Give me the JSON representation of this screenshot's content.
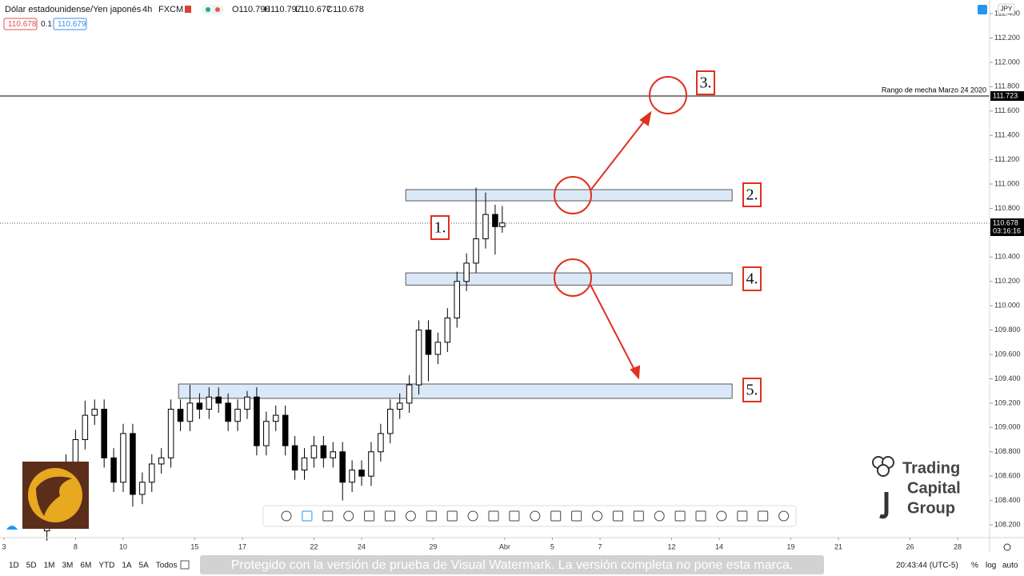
{
  "header": {
    "symbol": "Dólar estadounidense/Yen japonés",
    "interval": "4h",
    "source": "FXCM",
    "ohlc": [
      "O110.790",
      "H110.797",
      "L110.677",
      "C110.678"
    ],
    "sell": "110.678",
    "spread": "0.1",
    "buy": "110.679"
  },
  "currency": "JPY",
  "chart_data": {
    "type": "candlestick",
    "x": [
      1.8,
      2.2,
      2.6,
      3.0,
      3.4,
      3.8,
      4.2,
      4.6,
      5.0,
      5.4,
      5.8,
      6.2,
      6.6,
      7.0,
      7.4,
      7.8,
      8.2,
      8.6,
      9.0,
      9.4,
      9.8,
      10.2,
      10.6,
      11.0,
      11.4,
      11.8,
      12.2,
      12.6,
      13.0,
      13.4,
      13.8,
      14.2,
      14.6,
      15.0,
      15.4,
      15.8,
      16.2,
      16.6,
      17.0,
      17.4,
      17.8,
      18.2,
      18.6,
      19.0,
      19.4,
      19.8,
      20.2,
      20.6,
      20.9
    ],
    "open": [
      108.15,
      108.25,
      108.35,
      108.7,
      108.9,
      109.1,
      109.15,
      108.75,
      108.55,
      108.95,
      108.45,
      108.55,
      108.7,
      108.75,
      109.15,
      109.05,
      109.2,
      109.15,
      109.25,
      109.2,
      109.05,
      109.15,
      109.25,
      108.85,
      109.05,
      109.1,
      108.85,
      108.65,
      108.75,
      108.85,
      108.75,
      108.8,
      108.55,
      108.65,
      108.6,
      108.8,
      108.95,
      109.15,
      109.2,
      109.35,
      109.8,
      109.6,
      109.7,
      109.9,
      110.2,
      110.35,
      110.55,
      110.75,
      110.65
    ],
    "high": [
      108.33,
      108.43,
      108.78,
      108.98,
      109.22,
      109.23,
      109.23,
      108.83,
      109.03,
      109.03,
      108.63,
      108.78,
      108.83,
      109.23,
      109.23,
      109.35,
      109.28,
      109.33,
      109.33,
      109.28,
      109.23,
      109.3,
      109.33,
      109.13,
      109.18,
      109.18,
      108.93,
      108.83,
      108.93,
      108.93,
      108.88,
      108.88,
      108.73,
      108.73,
      108.88,
      109.03,
      109.23,
      109.28,
      109.43,
      109.88,
      109.88,
      109.78,
      109.98,
      110.28,
      110.43,
      110.97,
      110.93,
      110.83,
      110.82
    ],
    "low": [
      108.07,
      108.17,
      108.27,
      108.62,
      108.82,
      109.02,
      108.67,
      108.47,
      108.47,
      108.35,
      108.37,
      108.47,
      108.62,
      108.67,
      108.97,
      108.97,
      109.07,
      109.07,
      109.12,
      108.97,
      108.97,
      109.07,
      108.77,
      108.77,
      108.97,
      108.77,
      108.57,
      108.57,
      108.67,
      108.67,
      108.67,
      108.4,
      108.47,
      108.52,
      108.52,
      108.72,
      108.87,
      109.07,
      109.12,
      109.27,
      109.38,
      109.52,
      109.62,
      109.82,
      110.12,
      110.27,
      110.47,
      110.42,
      110.6
    ],
    "close": [
      108.25,
      108.35,
      108.7,
      108.9,
      109.1,
      109.15,
      108.75,
      108.55,
      108.95,
      108.45,
      108.55,
      108.7,
      108.75,
      109.15,
      109.05,
      109.2,
      109.15,
      109.25,
      109.2,
      109.05,
      109.15,
      109.25,
      108.85,
      109.05,
      109.1,
      108.85,
      108.65,
      108.75,
      108.85,
      108.75,
      108.8,
      108.55,
      108.65,
      108.6,
      108.8,
      108.95,
      109.15,
      109.2,
      109.35,
      109.8,
      109.6,
      109.7,
      109.9,
      110.2,
      110.35,
      110.55,
      110.75,
      110.65,
      110.68
    ],
    "up_color": "#ffffff",
    "down_color": "#000000",
    "xlim": [
      -0.168,
      41.34
    ],
    "ylim": [
      108.095,
      112.512
    ],
    "xticks": [
      {
        "value": 0,
        "label": "3"
      },
      {
        "value": 3,
        "label": "8"
      },
      {
        "value": 5,
        "label": "10"
      },
      {
        "value": 8,
        "label": "15"
      },
      {
        "value": 10,
        "label": "17"
      },
      {
        "value": 13,
        "label": "22"
      },
      {
        "value": 15,
        "label": "24"
      },
      {
        "value": 18,
        "label": "29"
      },
      {
        "value": 21,
        "label": "Abr"
      },
      {
        "value": 23,
        "label": "5"
      },
      {
        "value": 25,
        "label": "7"
      },
      {
        "value": 28,
        "label": "12"
      },
      {
        "value": 30,
        "label": "14"
      },
      {
        "value": 33,
        "label": "19"
      },
      {
        "value": 35,
        "label": "21"
      },
      {
        "value": 38,
        "label": "26"
      },
      {
        "value": 40,
        "label": "28"
      }
    ],
    "yticks": [
      {
        "value": 108.2,
        "label": "108.200"
      },
      {
        "value": 108.4,
        "label": "108.400"
      },
      {
        "value": 108.6,
        "label": "108.600"
      },
      {
        "value": 108.8,
        "label": "108.800"
      },
      {
        "value": 109,
        "label": "109.000"
      },
      {
        "value": 109.2,
        "label": "109.200"
      },
      {
        "value": 109.4,
        "label": "109.400"
      },
      {
        "value": 109.6,
        "label": "109.600"
      },
      {
        "value": 109.8,
        "label": "109.800"
      },
      {
        "value": 110,
        "label": "110.000"
      },
      {
        "value": 110.2,
        "label": "110.200"
      },
      {
        "value": 110.4,
        "label": "110.400"
      },
      {
        "value": 110.6,
        "label": "110.600"
      },
      {
        "value": 110.8,
        "label": "110.800"
      },
      {
        "value": 111,
        "label": "111.000"
      },
      {
        "value": 111.2,
        "label": "111.200"
      },
      {
        "value": 111.4,
        "label": "111.400"
      },
      {
        "value": 111.6,
        "label": "111.600"
      },
      {
        "value": 111.8,
        "label": "111.800"
      },
      {
        "value": 112,
        "label": "112.000"
      },
      {
        "value": 112.2,
        "label": "112.200"
      },
      {
        "value": 112.4,
        "label": "112.400"
      }
    ],
    "hline": {
      "value": 111.723,
      "text": "Rango de mecha Marzo 24 2020"
    },
    "last_price": {
      "value": 110.678,
      "countdown": "03:16:16"
    },
    "zones": [
      {
        "top": 110.954,
        "bottom": 110.862,
        "start": 16.85,
        "end": 30.54
      },
      {
        "top": 110.27,
        "bottom": 110.17,
        "start": 16.85,
        "end": 30.54
      },
      {
        "top": 109.357,
        "bottom": 109.239,
        "start": 7.32,
        "end": 30.54
      }
    ],
    "zone_color": "#dbe8f7",
    "annotations": [
      "1.",
      "2.",
      "3.",
      "4.",
      "5."
    ]
  },
  "ranges": [
    "1D",
    "5D",
    "1M",
    "3M",
    "6M",
    "YTD",
    "1A",
    "5A",
    "Todos"
  ],
  "clock": "20:43:44 (UTC-5)",
  "scale_options": [
    "%",
    "log",
    "auto"
  ],
  "watermark": "Protegido con la versión de prueba de Visual Watermark. La versión completa no pone esta marca.",
  "logo": [
    "Trading",
    "Capital",
    "Group"
  ]
}
